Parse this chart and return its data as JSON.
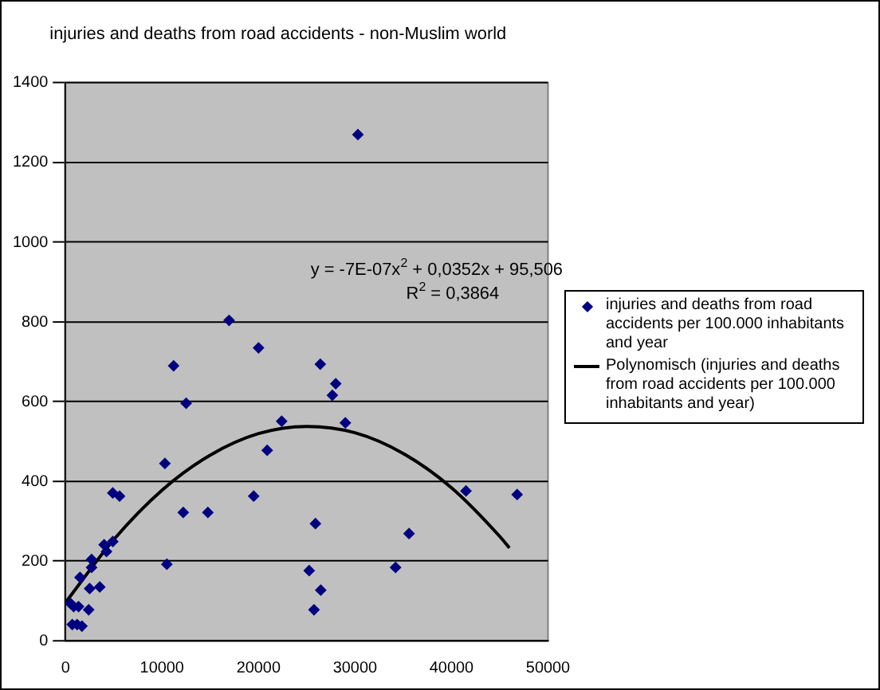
{
  "chart_data": {
    "type": "scatter",
    "title": "injuries and deaths from road accidents - non-Muslim world",
    "xlim": [
      0,
      50000
    ],
    "xticks": [
      0,
      10000,
      20000,
      30000,
      40000,
      50000
    ],
    "ylim": [
      0,
      1400
    ],
    "yticks": [
      0,
      200,
      400,
      600,
      800,
      1000,
      1200,
      1400
    ],
    "grid": "y",
    "legend": "right",
    "marker": "diamond",
    "annotations": [
      "y = -7E-07x$^{2}$ + 0,0352x + 95,506",
      "R$^{2}$ = 0,3864"
    ],
    "series": [
      {
        "name": "injuries and deaths from road accidents per 100.000 inhabitants and year",
        "color": "#000080",
        "x": [
          500,
          850,
          1350,
          700,
          1200,
          1700,
          1500,
          2700,
          2700,
          2500,
          2400,
          3550,
          4000,
          4250,
          4900,
          4900,
          5600,
          10500,
          12200,
          14750,
          16950,
          20000,
          11200,
          26400,
          28000,
          27650,
          12500,
          22400,
          29000,
          20900,
          10300,
          19500,
          25900,
          35600,
          34200,
          41500,
          46800,
          30300,
          25250,
          25750,
          26450
        ],
        "values": [
          94,
          86,
          86,
          41,
          41,
          37,
          159,
          204,
          184,
          131,
          78,
          135,
          241,
          224,
          249,
          371,
          363,
          192,
          322,
          322,
          804,
          735,
          690,
          694,
          645,
          616,
          596,
          551,
          547,
          478,
          445,
          363,
          294,
          269,
          184,
          376,
          367,
          1270,
          176,
          78,
          127
        ]
      },
      {
        "name": "Polynomisch (injuries and deaths from road accidents per 100.000 inhabitants and year)",
        "color": "#000000",
        "type": "line",
        "marker": "none",
        "x": [
          0,
          5000,
          10000,
          15000,
          20000,
          25000,
          30000,
          35000,
          40000,
          45000,
          46000
        ],
        "values": [
          96,
          254,
          378,
          466,
          520,
          538,
          522,
          470,
          384,
          262,
          233
        ]
      }
    ]
  }
}
